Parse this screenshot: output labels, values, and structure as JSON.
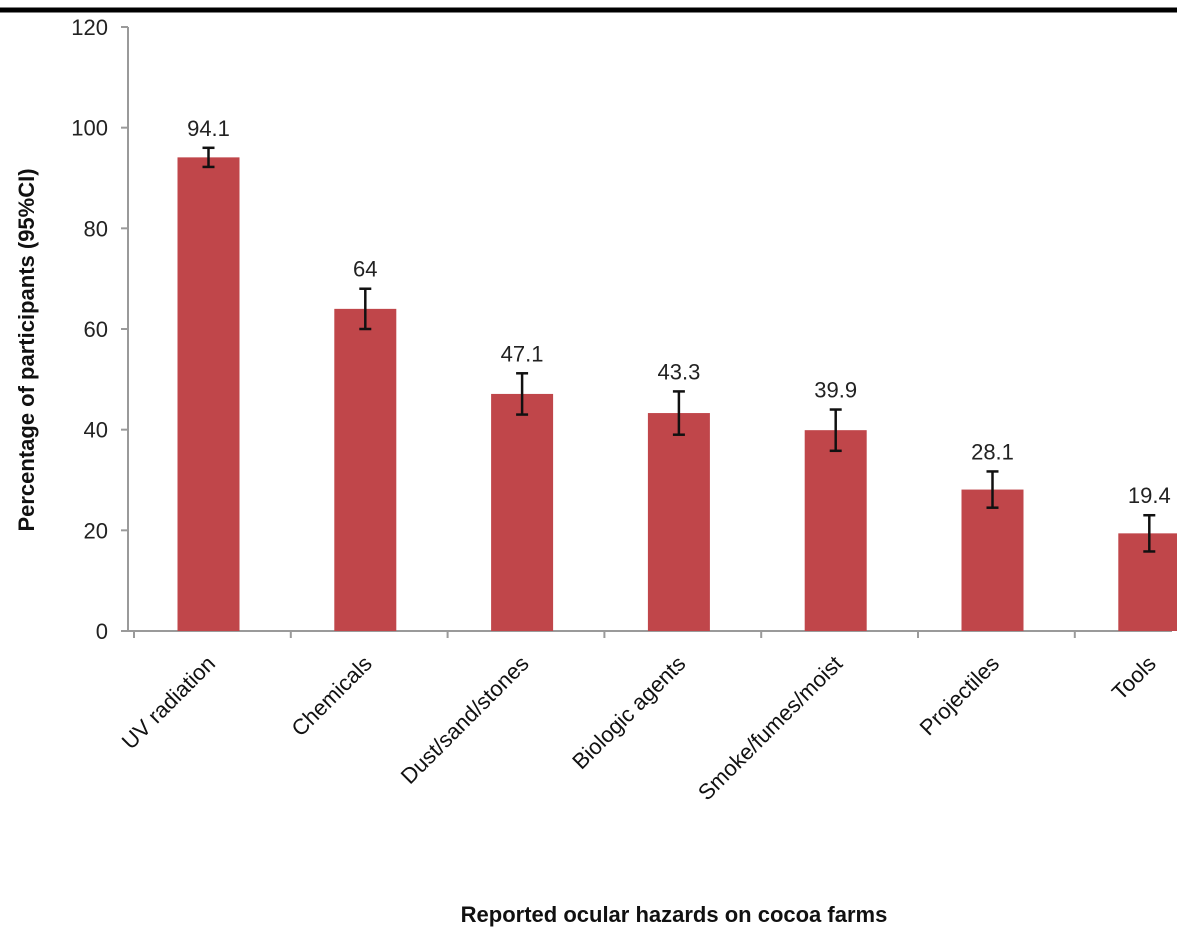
{
  "chart_data": {
    "type": "bar",
    "title": "",
    "xlabel": "Reported ocular hazards on cocoa farms",
    "ylabel": "Percentage of participants (95%CI)",
    "ylim": [
      0,
      120
    ],
    "yticks": [
      0,
      20,
      40,
      60,
      80,
      100,
      120
    ],
    "categories": [
      "UV radiation",
      "Chemicals",
      "Dust/sand/stones",
      "Biologic agents",
      "Smoke/fumes/moist",
      "Projectiles",
      "Tools"
    ],
    "values": [
      94.1,
      64,
      47.1,
      43.3,
      39.9,
      28.1,
      19.4
    ],
    "value_labels": [
      "94.1",
      "64",
      "47.1",
      "43.3",
      "39.9",
      "28.1",
      "19.4"
    ],
    "ci_low": [
      92.2,
      60.0,
      43.0,
      39.0,
      35.8,
      24.5,
      15.8
    ],
    "ci_high": [
      96.0,
      68.0,
      51.2,
      47.6,
      44.0,
      31.7,
      23.0
    ],
    "bar_color": "#C0464A",
    "grid": false,
    "legend": "none"
  }
}
